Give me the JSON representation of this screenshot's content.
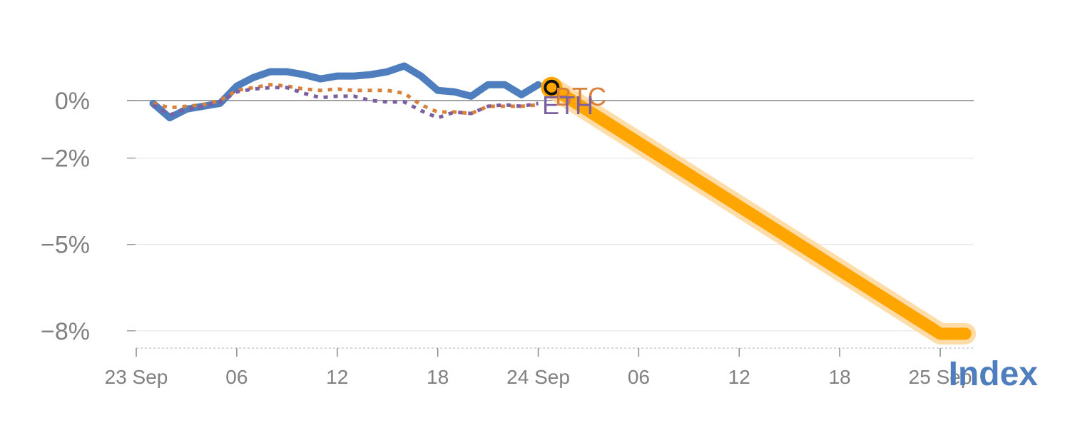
{
  "chart_data": {
    "type": "line",
    "ylim": [
      -8.6,
      2.5
    ],
    "y_ticks": [
      {
        "value": 0,
        "label": "0%"
      },
      {
        "value": -2,
        "label": "−2%"
      },
      {
        "value": -5,
        "label": "−5%"
      },
      {
        "value": -8,
        "label": "−8%"
      }
    ],
    "x_range_hours": [
      0,
      50
    ],
    "x_ticks": [
      {
        "hour": 0,
        "label": "23 Sep"
      },
      {
        "hour": 6,
        "label": "06"
      },
      {
        "hour": 12,
        "label": "12"
      },
      {
        "hour": 18,
        "label": "18"
      },
      {
        "hour": 24,
        "label": "24 Sep"
      },
      {
        "hour": 30,
        "label": "06"
      },
      {
        "hour": 36,
        "label": "12"
      },
      {
        "hour": 42,
        "label": "18"
      },
      {
        "hour": 48,
        "label": "25 Sep"
      }
    ],
    "series": [
      {
        "name": "Index",
        "color": "#4e7ebd",
        "label": "Index",
        "x": [
          1,
          2,
          3,
          4,
          5,
          6,
          7,
          8,
          9,
          10,
          11,
          12,
          13,
          14,
          15,
          16,
          17,
          18,
          19,
          20,
          21,
          22,
          23,
          24
        ],
        "values": [
          -0.1,
          -0.6,
          -0.3,
          -0.2,
          -0.1,
          0.5,
          0.8,
          1.0,
          1.0,
          0.9,
          0.75,
          0.85,
          0.85,
          0.9,
          1.0,
          1.2,
          0.85,
          0.35,
          0.3,
          0.15,
          0.55,
          0.55,
          0.2,
          0.55
        ]
      },
      {
        "name": "BTC",
        "color": "#d9803a",
        "label": "BTC",
        "dash": "dot",
        "x": [
          1,
          2,
          3,
          4,
          5,
          6,
          7,
          8,
          9,
          10,
          11,
          12,
          13,
          14,
          15,
          16,
          17,
          18,
          19,
          20,
          21,
          22,
          23,
          24
        ],
        "values": [
          -0.1,
          -0.25,
          -0.2,
          -0.15,
          0.0,
          0.35,
          0.45,
          0.55,
          0.5,
          0.4,
          0.35,
          0.4,
          0.35,
          0.35,
          0.35,
          0.25,
          -0.15,
          -0.4,
          -0.4,
          -0.45,
          -0.2,
          -0.2,
          -0.2,
          -0.15
        ]
      },
      {
        "name": "ETH",
        "color": "#7c5fa0",
        "label": "ETH",
        "dash": "dot",
        "x": [
          1,
          2,
          3,
          4,
          5,
          6,
          7,
          8,
          9,
          10,
          11,
          12,
          13,
          14,
          15,
          16,
          17,
          18,
          19,
          20,
          21,
          22,
          23,
          24
        ],
        "values": [
          -0.15,
          -0.5,
          -0.3,
          -0.2,
          -0.05,
          0.3,
          0.4,
          0.45,
          0.45,
          0.25,
          0.1,
          0.15,
          0.15,
          0.0,
          -0.05,
          -0.05,
          -0.35,
          -0.6,
          -0.4,
          -0.45,
          -0.2,
          -0.15,
          -0.2,
          -0.1
        ]
      },
      {
        "name": "Projection",
        "color": "#ffa500",
        "label": "",
        "x": [
          24.8,
          48,
          49.5
        ],
        "values": [
          0.45,
          -8.1,
          -8.1
        ]
      }
    ],
    "marker": {
      "series": "Projection",
      "x": 24.8,
      "y": 0.45
    }
  }
}
